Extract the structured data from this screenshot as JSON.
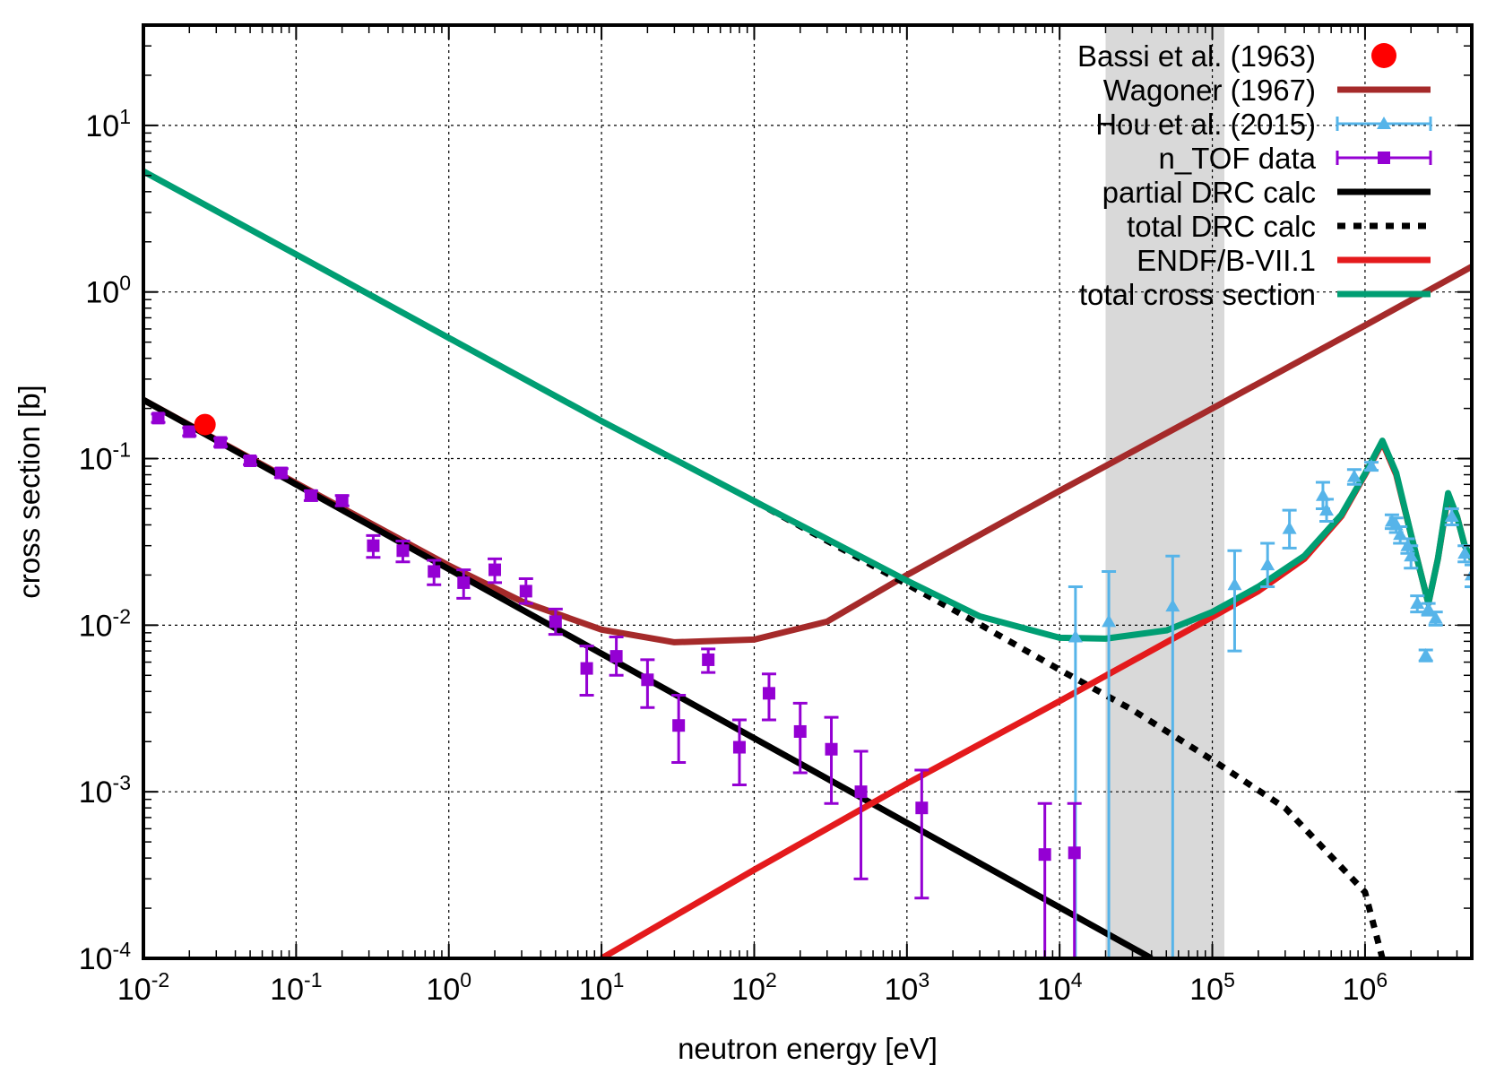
{
  "chart_data": {
    "type": "scatter",
    "title": "",
    "xlabel": "neutron energy [eV]",
    "ylabel": "cross section [b]",
    "xscale": "log",
    "yscale": "log",
    "xlim": [
      0.01,
      5000000
    ],
    "ylim": [
      0.0001,
      40
    ],
    "grid": true,
    "legend_position": "top-right",
    "x_ticks": [
      {
        "base": "10",
        "exp": "-2",
        "value": 0.01
      },
      {
        "base": "10",
        "exp": "-1",
        "value": 0.1
      },
      {
        "base": "10",
        "exp": "0",
        "value": 1
      },
      {
        "base": "10",
        "exp": "1",
        "value": 10
      },
      {
        "base": "10",
        "exp": "2",
        "value": 100
      },
      {
        "base": "10",
        "exp": "3",
        "value": 1000
      },
      {
        "base": "10",
        "exp": "4",
        "value": 10000
      },
      {
        "base": "10",
        "exp": "5",
        "value": 100000
      },
      {
        "base": "10",
        "exp": "6",
        "value": 1000000
      }
    ],
    "y_ticks": [
      {
        "base": "10",
        "exp": "-4",
        "value": 0.0001
      },
      {
        "base": "10",
        "exp": "-3",
        "value": 0.001
      },
      {
        "base": "10",
        "exp": "-2",
        "value": 0.01
      },
      {
        "base": "10",
        "exp": "-1",
        "value": 0.1
      },
      {
        "base": "10",
        "exp": "0",
        "value": 1
      },
      {
        "base": "10",
        "exp": "1",
        "value": 10
      }
    ],
    "shaded_band": {
      "x_start": 20000,
      "x_end": 120000,
      "color": "#d9d9d9"
    },
    "series": [
      {
        "name": "Bassi et al. (1963)",
        "kind": "points",
        "marker": "circle",
        "color": "#ff0000",
        "points": [
          {
            "x": 0.0253,
            "y": 0.16
          }
        ]
      },
      {
        "name": "Wagoner (1967)",
        "kind": "line",
        "style": "solid",
        "color": "#a52a2a",
        "x": [
          0.01,
          0.1,
          1,
          3,
          10,
          30,
          100,
          300,
          1000,
          10000,
          100000,
          1000000,
          5000000
        ],
        "y": [
          0.225,
          0.0712,
          0.0228,
          0.0139,
          0.0094,
          0.0079,
          0.0082,
          0.0105,
          0.02,
          0.064,
          0.2,
          0.63,
          1.42
        ]
      },
      {
        "name": "Hou et al. (2015)",
        "kind": "points_errorbars",
        "marker": "triangle",
        "color": "#56b4e9",
        "points": [
          {
            "x": 12700,
            "y": 0.0085,
            "lo": 0.0001,
            "hi": 0.017
          },
          {
            "x": 21000,
            "y": 0.0105,
            "lo": 0.0001,
            "hi": 0.021
          },
          {
            "x": 55000,
            "y": 0.013,
            "lo": 0.0001,
            "hi": 0.026
          },
          {
            "x": 140000,
            "y": 0.0175,
            "lo": 0.007,
            "hi": 0.028
          },
          {
            "x": 230000,
            "y": 0.023,
            "lo": 0.017,
            "hi": 0.031
          },
          {
            "x": 320000,
            "y": 0.038,
            "lo": 0.029,
            "hi": 0.049
          },
          {
            "x": 530000,
            "y": 0.06,
            "lo": 0.05,
            "hi": 0.072
          },
          {
            "x": 560000,
            "y": 0.049,
            "lo": 0.042,
            "hi": 0.057
          },
          {
            "x": 850000,
            "y": 0.078,
            "lo": 0.07,
            "hi": 0.086
          },
          {
            "x": 1100000,
            "y": 0.09,
            "lo": 0.085,
            "hi": 0.095
          },
          {
            "x": 1500000,
            "y": 0.042,
            "lo": 0.038,
            "hi": 0.046
          },
          {
            "x": 1600000,
            "y": 0.04,
            "lo": 0.036,
            "hi": 0.044
          },
          {
            "x": 1700000,
            "y": 0.035,
            "lo": 0.031,
            "hi": 0.039
          },
          {
            "x": 1900000,
            "y": 0.03,
            "lo": 0.027,
            "hi": 0.033
          },
          {
            "x": 2000000,
            "y": 0.026,
            "lo": 0.022,
            "hi": 0.03
          },
          {
            "x": 2200000,
            "y": 0.0135,
            "lo": 0.012,
            "hi": 0.015
          },
          {
            "x": 2500000,
            "y": 0.0066,
            "lo": 0.0061,
            "hi": 0.0071
          },
          {
            "x": 2600000,
            "y": 0.0125,
            "lo": 0.0115,
            "hi": 0.0135
          },
          {
            "x": 2900000,
            "y": 0.011,
            "lo": 0.01,
            "hi": 0.012
          },
          {
            "x": 3700000,
            "y": 0.045,
            "lo": 0.04,
            "hi": 0.05
          },
          {
            "x": 4500000,
            "y": 0.027,
            "lo": 0.024,
            "hi": 0.03
          },
          {
            "x": 5000000,
            "y": 0.02,
            "lo": 0.017,
            "hi": 0.023
          }
        ]
      },
      {
        "name": "n_TOF data",
        "kind": "points_errorbars",
        "marker": "square",
        "color": "#9400d3",
        "points": [
          {
            "x": 0.0125,
            "y": 0.175,
            "lo": 0.165,
            "hi": 0.185
          },
          {
            "x": 0.02,
            "y": 0.145,
            "lo": 0.137,
            "hi": 0.153
          },
          {
            "x": 0.032,
            "y": 0.125,
            "lo": 0.118,
            "hi": 0.132
          },
          {
            "x": 0.05,
            "y": 0.097,
            "lo": 0.092,
            "hi": 0.102
          },
          {
            "x": 0.08,
            "y": 0.082,
            "lo": 0.077,
            "hi": 0.087
          },
          {
            "x": 0.125,
            "y": 0.06,
            "lo": 0.056,
            "hi": 0.064
          },
          {
            "x": 0.2,
            "y": 0.056,
            "lo": 0.052,
            "hi": 0.06
          },
          {
            "x": 0.32,
            "y": 0.03,
            "lo": 0.0255,
            "hi": 0.0345
          },
          {
            "x": 0.5,
            "y": 0.028,
            "lo": 0.024,
            "hi": 0.032
          },
          {
            "x": 0.8,
            "y": 0.021,
            "lo": 0.0175,
            "hi": 0.0245
          },
          {
            "x": 1.25,
            "y": 0.018,
            "lo": 0.0145,
            "hi": 0.0215
          },
          {
            "x": 2.0,
            "y": 0.0215,
            "lo": 0.018,
            "hi": 0.025
          },
          {
            "x": 3.2,
            "y": 0.016,
            "lo": 0.0135,
            "hi": 0.019
          },
          {
            "x": 5.0,
            "y": 0.0105,
            "lo": 0.0088,
            "hi": 0.0125
          },
          {
            "x": 8.0,
            "y": 0.0055,
            "lo": 0.0038,
            "hi": 0.0075
          },
          {
            "x": 12.5,
            "y": 0.0065,
            "lo": 0.005,
            "hi": 0.0085
          },
          {
            "x": 20,
            "y": 0.0047,
            "lo": 0.0032,
            "hi": 0.0062
          },
          {
            "x": 32,
            "y": 0.0025,
            "lo": 0.0015,
            "hi": 0.0038
          },
          {
            "x": 50,
            "y": 0.0062,
            "lo": 0.0052,
            "hi": 0.0072
          },
          {
            "x": 80,
            "y": 0.00185,
            "lo": 0.0011,
            "hi": 0.0027
          },
          {
            "x": 125,
            "y": 0.0039,
            "lo": 0.0027,
            "hi": 0.0051
          },
          {
            "x": 200,
            "y": 0.0023,
            "lo": 0.0013,
            "hi": 0.0034
          },
          {
            "x": 320,
            "y": 0.0018,
            "lo": 0.00085,
            "hi": 0.0028
          },
          {
            "x": 500,
            "y": 0.001,
            "lo": 0.0003,
            "hi": 0.00175
          },
          {
            "x": 1250,
            "y": 0.0008,
            "lo": 0.00023,
            "hi": 0.00135
          },
          {
            "x": 8000,
            "y": 0.00042,
            "lo": 0.0001,
            "hi": 0.00085
          },
          {
            "x": 12500,
            "y": 0.00043,
            "lo": 0.0001,
            "hi": 0.00085
          }
        ]
      },
      {
        "name": "partial DRC calc",
        "kind": "line",
        "style": "solid",
        "color": "#000000",
        "x": [
          0.01,
          40000
        ],
        "y": [
          0.225,
          0.0001
        ]
      },
      {
        "name": "total DRC calc",
        "kind": "line",
        "style": "dotted",
        "color": "#000000",
        "x": [
          100,
          300,
          1000,
          3000,
          10000,
          30000,
          100000,
          300000,
          1000000,
          1300000
        ],
        "y": [
          0.0555,
          0.0321,
          0.0176,
          0.0101,
          0.0054,
          0.0031,
          0.00155,
          0.0008,
          0.00025,
          0.0001
        ]
      },
      {
        "name": "ENDF/B-VII.1",
        "kind": "line",
        "style": "solid",
        "color": "#e41a1c",
        "x": [
          10,
          100,
          1000,
          10000,
          100000,
          200000,
          400000,
          700000,
          1000000,
          1300000,
          1600000,
          2000000,
          2600000,
          3000000,
          3500000,
          4000000,
          4500000,
          5000000
        ],
        "y": [
          0.0001,
          0.00034,
          0.00112,
          0.0035,
          0.0112,
          0.016,
          0.025,
          0.045,
          0.08,
          0.125,
          0.08,
          0.035,
          0.0135,
          0.025,
          0.06,
          0.045,
          0.03,
          0.025
        ]
      },
      {
        "name": "total cross section",
        "kind": "line",
        "style": "solid",
        "color": "#009e73",
        "x": [
          0.01,
          0.1,
          1,
          10,
          100,
          1000,
          3000,
          10000,
          20000,
          50000,
          100000,
          200000,
          400000,
          700000,
          1000000,
          1300000,
          1600000,
          2000000,
          2600000,
          3000000,
          3500000,
          4000000,
          4500000,
          5000000
        ],
        "y": [
          5.3,
          1.68,
          0.53,
          0.168,
          0.0555,
          0.0185,
          0.0113,
          0.0084,
          0.0083,
          0.0093,
          0.012,
          0.017,
          0.026,
          0.046,
          0.081,
          0.128,
          0.082,
          0.035,
          0.0135,
          0.025,
          0.062,
          0.045,
          0.03,
          0.025
        ]
      }
    ]
  }
}
